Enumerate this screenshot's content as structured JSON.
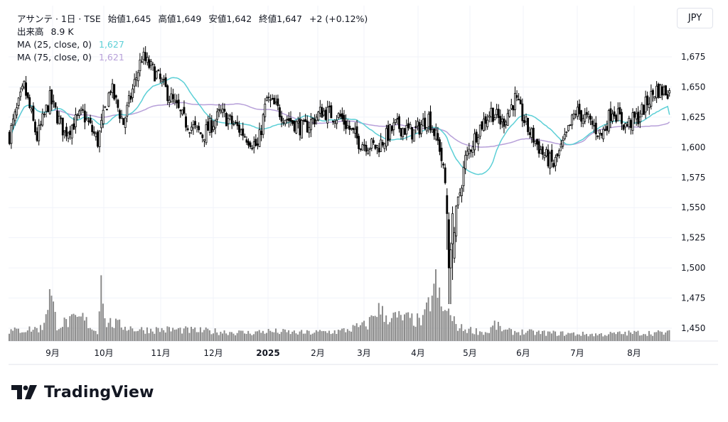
{
  "legend": {
    "symbol": "アサンテ · 1日 · TSE",
    "open_label": "始値",
    "open": "1,645",
    "high_label": "高値",
    "high": "1,649",
    "low_label": "安値",
    "low": "1,642",
    "close_label": "終値",
    "close": "1,647",
    "change": "+2 (+0.12%)",
    "volume_label": "出来高",
    "volume": "8.9 K",
    "ma1_label": "MA (25, close, 0)",
    "ma1_value": "1,627",
    "ma2_label": "MA (75, close, 0)",
    "ma2_value": "1,621"
  },
  "currency": "JPY",
  "brand": "TradingView",
  "colors": {
    "candle": "#000000",
    "ma1": "#5bcfd6",
    "ma2": "#b7a0d9",
    "volume": "#8a8a8a",
    "grid": "#f0f3fa",
    "text": "#131722"
  },
  "chart_data": {
    "type": "candlestick",
    "yaxis": {
      "ticks": [
        1450,
        1475,
        1500,
        1525,
        1550,
        1575,
        1600,
        1625,
        1650,
        1675
      ],
      "range": [
        1440,
        1700
      ]
    },
    "xaxis": {
      "labels": [
        "9月",
        "10月",
        "11月",
        "12月",
        "2025",
        "2月",
        "3月",
        "4月",
        "5月",
        "6月",
        "7月",
        "8月"
      ]
    },
    "price_keypoints": [
      [
        0,
        1610
      ],
      [
        8,
        1650
      ],
      [
        15,
        1608
      ],
      [
        22,
        1640
      ],
      [
        30,
        1612
      ],
      [
        40,
        1628
      ],
      [
        48,
        1605
      ],
      [
        55,
        1650
      ],
      [
        62,
        1620
      ],
      [
        72,
        1675
      ],
      [
        80,
        1660
      ],
      [
        88,
        1640
      ],
      [
        95,
        1622
      ],
      [
        105,
        1610
      ],
      [
        115,
        1628
      ],
      [
        125,
        1615
      ],
      [
        135,
        1600
      ],
      [
        140,
        1640
      ],
      [
        150,
        1625
      ],
      [
        160,
        1615
      ],
      [
        170,
        1630
      ],
      [
        180,
        1625
      ],
      [
        190,
        1605
      ],
      [
        200,
        1600
      ],
      [
        210,
        1618
      ],
      [
        220,
        1612
      ],
      [
        228,
        1625
      ],
      [
        234,
        1600
      ],
      [
        238,
        1560
      ],
      [
        240,
        1500
      ],
      [
        243,
        1545
      ],
      [
        248,
        1590
      ],
      [
        255,
        1615
      ],
      [
        262,
        1630
      ],
      [
        268,
        1620
      ],
      [
        275,
        1640
      ],
      [
        282,
        1615
      ],
      [
        290,
        1595
      ],
      [
        296,
        1585
      ],
      [
        302,
        1605
      ],
      [
        308,
        1630
      ],
      [
        315,
        1622
      ],
      [
        322,
        1610
      ],
      [
        328,
        1632
      ],
      [
        335,
        1618
      ],
      [
        342,
        1625
      ],
      [
        348,
        1640
      ],
      [
        352,
        1648
      ],
      [
        355,
        1647
      ]
    ],
    "volume_keypoints": [
      [
        0,
        6
      ],
      [
        18,
        8
      ],
      [
        22,
        30
      ],
      [
        26,
        10
      ],
      [
        40,
        14
      ],
      [
        48,
        5
      ],
      [
        50,
        48
      ],
      [
        52,
        12
      ],
      [
        70,
        7
      ],
      [
        90,
        7
      ],
      [
        130,
        5
      ],
      [
        140,
        6
      ],
      [
        160,
        5
      ],
      [
        180,
        6
      ],
      [
        195,
        10
      ],
      [
        200,
        20
      ],
      [
        205,
        15
      ],
      [
        215,
        14
      ],
      [
        225,
        12
      ],
      [
        232,
        35
      ],
      [
        236,
        16
      ],
      [
        238,
        22
      ],
      [
        240,
        14
      ],
      [
        245,
        8
      ],
      [
        260,
        5
      ],
      [
        264,
        10
      ],
      [
        270,
        6
      ],
      [
        290,
        5
      ],
      [
        320,
        4
      ],
      [
        340,
        5
      ],
      [
        355,
        5
      ]
    ],
    "volume_axis_max": 50,
    "series": [
      {
        "name": "MA (25, close, 0)",
        "last": 1627
      },
      {
        "name": "MA (75, close, 0)",
        "last": 1621
      }
    ]
  }
}
